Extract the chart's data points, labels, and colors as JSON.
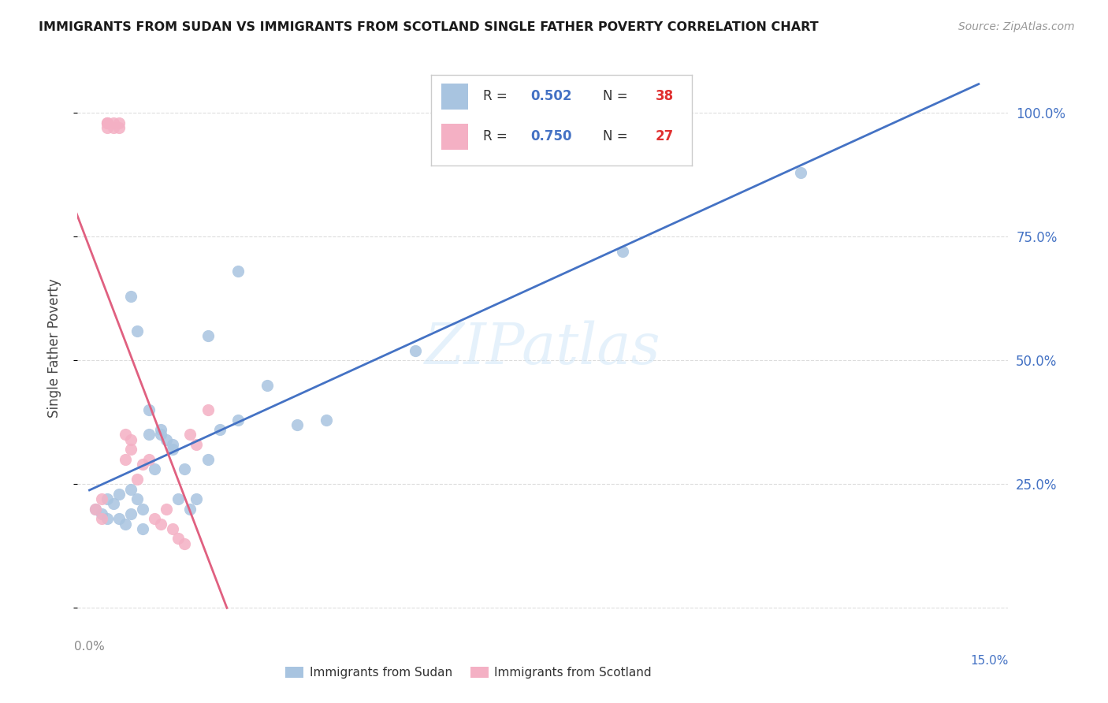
{
  "title": "IMMIGRANTS FROM SUDAN VS IMMIGRANTS FROM SCOTLAND SINGLE FATHER POVERTY CORRELATION CHART",
  "source": "Source: ZipAtlas.com",
  "ylabel": "Single Father Poverty",
  "xlim_data": [
    -0.002,
    0.155
  ],
  "ylim_data": [
    -0.05,
    1.1
  ],
  "sudan_R": "0.502",
  "sudan_N": "38",
  "scotland_R": "0.750",
  "scotland_N": "27",
  "sudan_color": "#a8c4e0",
  "scotland_color": "#f4b0c4",
  "sudan_line_color": "#4472c4",
  "scotland_line_color": "#e06080",
  "blue_text_color": "#4472c4",
  "red_text_color": "#e03030",
  "gray_text_color": "#888888",
  "grid_color": "#dddddd",
  "sudan_x": [
    0.001,
    0.002,
    0.003,
    0.003,
    0.004,
    0.005,
    0.005,
    0.006,
    0.007,
    0.007,
    0.008,
    0.009,
    0.009,
    0.01,
    0.011,
    0.012,
    0.013,
    0.014,
    0.015,
    0.017,
    0.02,
    0.022,
    0.025,
    0.03,
    0.035,
    0.04,
    0.055,
    0.007,
    0.008,
    0.01,
    0.012,
    0.014,
    0.016,
    0.018,
    0.02,
    0.025,
    0.09,
    0.12
  ],
  "sudan_y": [
    0.2,
    0.19,
    0.18,
    0.22,
    0.21,
    0.23,
    0.18,
    0.17,
    0.24,
    0.19,
    0.22,
    0.2,
    0.16,
    0.35,
    0.28,
    0.36,
    0.34,
    0.32,
    0.22,
    0.2,
    0.3,
    0.36,
    0.38,
    0.45,
    0.37,
    0.38,
    0.52,
    0.63,
    0.56,
    0.4,
    0.35,
    0.33,
    0.28,
    0.22,
    0.55,
    0.68,
    0.72,
    0.88
  ],
  "scotland_x": [
    0.001,
    0.002,
    0.002,
    0.003,
    0.003,
    0.003,
    0.003,
    0.004,
    0.004,
    0.005,
    0.005,
    0.006,
    0.006,
    0.007,
    0.007,
    0.008,
    0.009,
    0.01,
    0.011,
    0.012,
    0.013,
    0.014,
    0.015,
    0.016,
    0.017,
    0.018,
    0.02
  ],
  "scotland_y": [
    0.2,
    0.22,
    0.18,
    0.98,
    0.98,
    0.98,
    0.97,
    0.98,
    0.97,
    0.98,
    0.97,
    0.35,
    0.3,
    0.34,
    0.32,
    0.26,
    0.29,
    0.3,
    0.18,
    0.17,
    0.2,
    0.16,
    0.14,
    0.13,
    0.35,
    0.33,
    0.4
  ],
  "ytick_positions": [
    0.0,
    0.25,
    0.5,
    0.75,
    1.0
  ],
  "ytick_labels_right": [
    "",
    "25.0%",
    "50.0%",
    "75.0%",
    "100.0%"
  ],
  "xtick_positions": [
    0.0,
    0.025,
    0.05,
    0.075,
    0.1,
    0.125,
    0.15
  ],
  "watermark": "ZIPatlas"
}
